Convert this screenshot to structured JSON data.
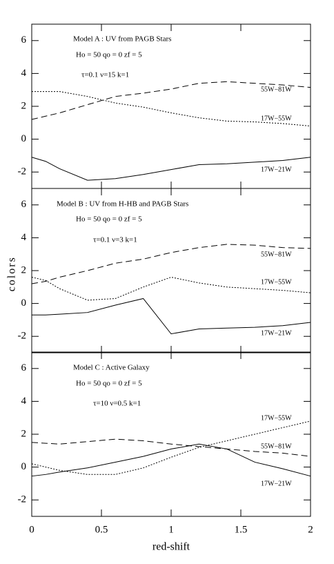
{
  "chart_data": [
    {
      "type": "line",
      "annotations": [
        "Model A : UV from PAGB Stars",
        "Ho = 50  qo = 0  zf = 5",
        "τ=0.1  ν=15  k=1"
      ],
      "x": [
        0,
        0.1,
        0.2,
        0.4,
        0.6,
        0.8,
        1.0,
        1.2,
        1.4,
        1.6,
        1.8,
        2.0
      ],
      "xlim": [
        0,
        2
      ],
      "xticks": [
        0,
        0.5,
        1,
        1.5,
        2
      ],
      "ylim": [
        -3,
        7
      ],
      "yticks": [
        -2,
        0,
        2,
        4,
        6
      ],
      "series": [
        {
          "name": "55W−81W",
          "color": "#000000",
          "dash": "dashed",
          "values": [
            1.2,
            1.4,
            1.6,
            2.1,
            2.6,
            2.8,
            3.05,
            3.4,
            3.5,
            3.4,
            3.3,
            3.15
          ]
        },
        {
          "name": "17W−55W",
          "color": "#000000",
          "dash": "dotted",
          "values": [
            2.9,
            2.9,
            2.9,
            2.6,
            2.2,
            1.95,
            1.6,
            1.3,
            1.1,
            1.05,
            0.95,
            0.8
          ]
        },
        {
          "name": "17W−21W",
          "color": "#000000",
          "dash": "solid",
          "values": [
            -1.1,
            -1.35,
            -1.8,
            -2.5,
            -2.4,
            -2.15,
            -1.85,
            -1.55,
            -1.5,
            -1.4,
            -1.3,
            -1.1
          ]
        }
      ]
    },
    {
      "type": "line",
      "annotations": [
        "Model B : UV from H-HB and PAGB Stars",
        "Ho = 50  qo = 0  zf = 5",
        "τ=0.1  ν=3  k=1"
      ],
      "ylabel": "colors",
      "x": [
        0,
        0.1,
        0.2,
        0.4,
        0.6,
        0.8,
        1.0,
        1.2,
        1.4,
        1.6,
        1.8,
        2.0
      ],
      "xlim": [
        0,
        2
      ],
      "xticks": [
        0,
        0.5,
        1,
        1.5,
        2
      ],
      "ylim": [
        -3,
        7
      ],
      "yticks": [
        -2,
        0,
        2,
        4,
        6
      ],
      "series": [
        {
          "name": "55W−81W",
          "color": "#000000",
          "dash": "dashed",
          "values": [
            1.2,
            1.35,
            1.6,
            2.0,
            2.45,
            2.7,
            3.1,
            3.4,
            3.6,
            3.55,
            3.4,
            3.35
          ]
        },
        {
          "name": "17W−55W",
          "color": "#000000",
          "dash": "dotted",
          "values": [
            1.6,
            1.4,
            0.9,
            0.2,
            0.3,
            1.0,
            1.6,
            1.25,
            1.0,
            0.9,
            0.8,
            0.65
          ]
        },
        {
          "name": "17W−21W",
          "color": "#000000",
          "dash": "solid",
          "values": [
            -0.7,
            -0.7,
            -0.65,
            -0.55,
            -0.1,
            0.3,
            -1.85,
            -1.55,
            -1.5,
            -1.45,
            -1.35,
            -1.15
          ]
        }
      ]
    },
    {
      "type": "line",
      "annotations": [
        "Model C : Active Galaxy",
        "Ho = 50  qo = 0  zf = 5",
        "τ=10  ν=0.5  k=1"
      ],
      "xlabel": "red-shift",
      "x": [
        0,
        0.1,
        0.2,
        0.4,
        0.6,
        0.8,
        1.0,
        1.2,
        1.4,
        1.6,
        1.8,
        2.0
      ],
      "xlim": [
        0,
        2
      ],
      "xticks": [
        0,
        0.5,
        1,
        1.5,
        2
      ],
      "ylim": [
        -3,
        7
      ],
      "yticks": [
        -2,
        0,
        2,
        4,
        6
      ],
      "series": [
        {
          "name": "55W−81W",
          "color": "#000000",
          "dash": "dashed",
          "values": [
            1.5,
            1.45,
            1.4,
            1.55,
            1.7,
            1.6,
            1.4,
            1.25,
            1.1,
            0.95,
            0.85,
            0.65
          ]
        },
        {
          "name": "17W−55W",
          "color": "#000000",
          "dash": "dotted",
          "values": [
            0.2,
            0.0,
            -0.2,
            -0.45,
            -0.45,
            -0.05,
            0.6,
            1.2,
            1.6,
            2.0,
            2.4,
            2.8
          ]
        },
        {
          "name": "17W−21W",
          "color": "#000000",
          "dash": "solid",
          "values": [
            -0.55,
            -0.45,
            -0.3,
            -0.05,
            0.3,
            0.65,
            1.1,
            1.4,
            1.1,
            0.3,
            -0.1,
            -0.55
          ]
        }
      ]
    }
  ]
}
